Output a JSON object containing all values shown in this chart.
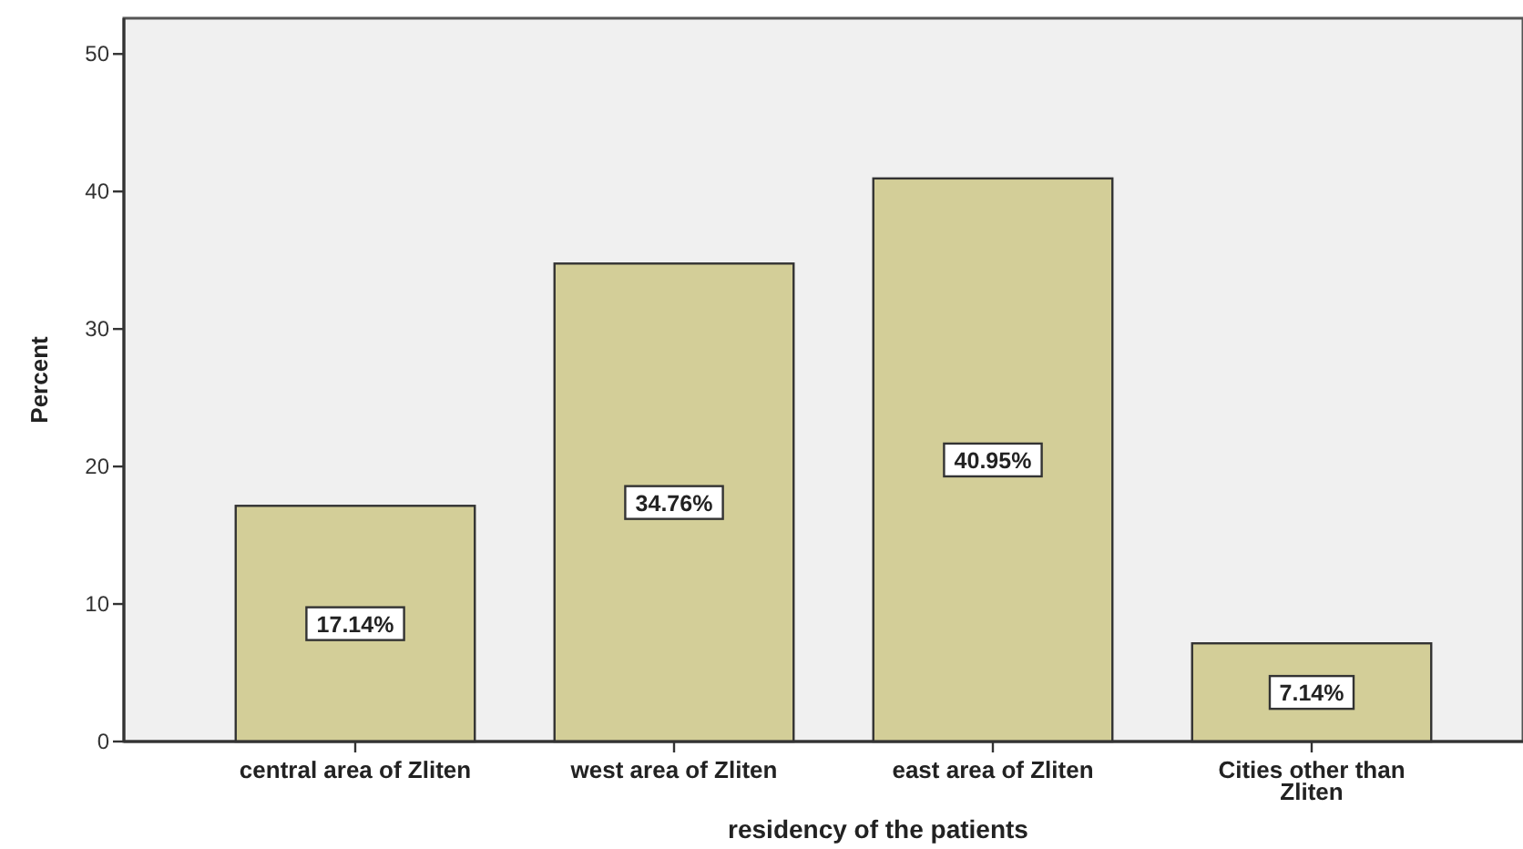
{
  "chart_data": {
    "type": "bar",
    "xlabel": "residency of the patients",
    "ylabel": "Percent",
    "categories": [
      "central area of Zliten",
      "west area of Zliten",
      "east area of Zliten",
      "Cities other than Zliten"
    ],
    "values": [
      17.14,
      34.76,
      40.95,
      7.14
    ],
    "value_labels": [
      "17.14%",
      "34.76%",
      "40.95%",
      "7.14%"
    ],
    "color": "#d3ce98",
    "ylim": [
      0,
      52.6
    ],
    "yticks": [
      0,
      10,
      20,
      30,
      40,
      50
    ],
    "grid": false
  }
}
